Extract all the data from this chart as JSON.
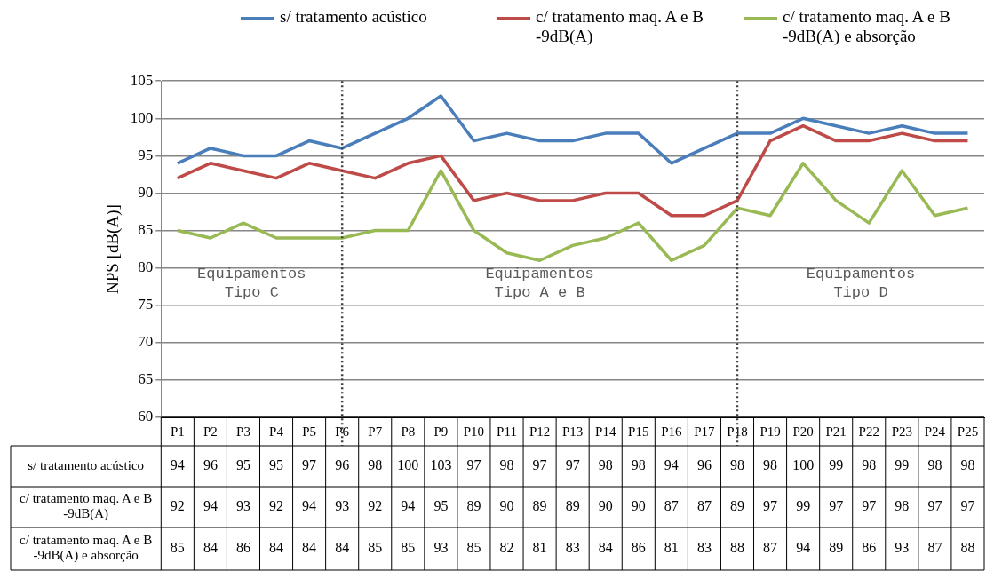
{
  "chart_data": {
    "type": "line",
    "ylabel": "NPS [dB(A)]",
    "categories": [
      "P1",
      "P2",
      "P3",
      "P4",
      "P5",
      "P6",
      "P7",
      "P8",
      "P9",
      "P10",
      "P11",
      "P12",
      "P13",
      "P14",
      "P15",
      "P16",
      "P17",
      "P18",
      "P19",
      "P20",
      "P21",
      "P22",
      "P23",
      "P24",
      "P25"
    ],
    "series": [
      {
        "name": "s/ tratamento acústico",
        "color": "#4a7ebb",
        "values": [
          94,
          96,
          95,
          95,
          97,
          96,
          98,
          100,
          103,
          97,
          98,
          97,
          97,
          98,
          98,
          94,
          96,
          98,
          98,
          100,
          99,
          98,
          99,
          98,
          98
        ]
      },
      {
        "name": "c/ tratamento maq. A e B -9dB(A)",
        "color": "#be4b48",
        "values": [
          92,
          94,
          93,
          92,
          94,
          93,
          92,
          94,
          95,
          89,
          90,
          89,
          89,
          90,
          90,
          87,
          87,
          89,
          97,
          99,
          97,
          97,
          98,
          97,
          97
        ]
      },
      {
        "name": "c/ tratamento maq. A e B -9dB(A) e absorção",
        "color": "#98b954",
        "values": [
          85,
          84,
          86,
          84,
          84,
          84,
          85,
          85,
          93,
          85,
          82,
          81,
          83,
          84,
          86,
          81,
          83,
          88,
          87,
          94,
          89,
          86,
          93,
          87,
          88
        ]
      }
    ],
    "ylim": [
      60,
      105
    ],
    "yticks": [
      60,
      65,
      70,
      75,
      80,
      85,
      90,
      95,
      100,
      105
    ],
    "grid": "y",
    "legend": "top",
    "marker": "none",
    "line_style": "solid",
    "data_labels": true,
    "ref_lines": [
      {
        "axis": "x",
        "value": "P6",
        "line_style": "dotted"
      },
      {
        "axis": "x",
        "value": "P18",
        "line_style": "dotted"
      }
    ],
    "annotations": [
      "Equipamentos\nTipo C",
      "Equipamentos\nTipo A e B",
      "Equipamentos\nTipo D"
    ]
  }
}
